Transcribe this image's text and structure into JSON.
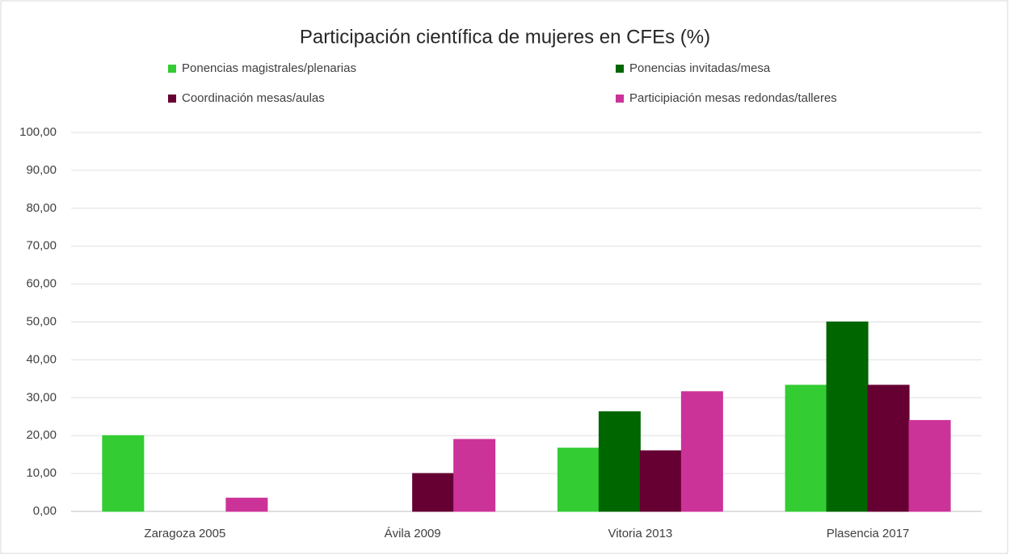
{
  "chart_data": {
    "type": "bar",
    "title": "Participación científica de mujeres en CFEs (%)",
    "categories": [
      "Zaragoza 2005",
      "Ávila 2009",
      "Vitoria 2013",
      "Plasencia 2017"
    ],
    "series": [
      {
        "name": "Ponencias magistrales/plenarias",
        "color": "#33cc33",
        "values": [
          20,
          0,
          16.7,
          33.3
        ]
      },
      {
        "name": "Ponencias invitadas/mesa",
        "color": "#006600",
        "values": [
          0,
          0,
          26.3,
          50
        ]
      },
      {
        "name": "Coordinación mesas/aulas",
        "color": "#660033",
        "values": [
          0,
          10,
          16,
          33.3
        ]
      },
      {
        "name": "Participiación mesas redondas/talleres",
        "color": "#cc3399",
        "values": [
          3.5,
          19,
          31.6,
          24
        ]
      }
    ],
    "ylim": [
      0,
      100
    ],
    "yticks": [
      {
        "value": 0,
        "label": "0,00"
      },
      {
        "value": 10,
        "label": "10,00"
      },
      {
        "value": 20,
        "label": "20,00"
      },
      {
        "value": 30,
        "label": "30,00"
      },
      {
        "value": 40,
        "label": "40,00"
      },
      {
        "value": 50,
        "label": "50,00"
      },
      {
        "value": 60,
        "label": "60,00"
      },
      {
        "value": 70,
        "label": "70,00"
      },
      {
        "value": 80,
        "label": "80,00"
      },
      {
        "value": 90,
        "label": "90,00"
      },
      {
        "value": 100,
        "label": "100,00"
      }
    ],
    "grid": true,
    "legend": "top"
  }
}
